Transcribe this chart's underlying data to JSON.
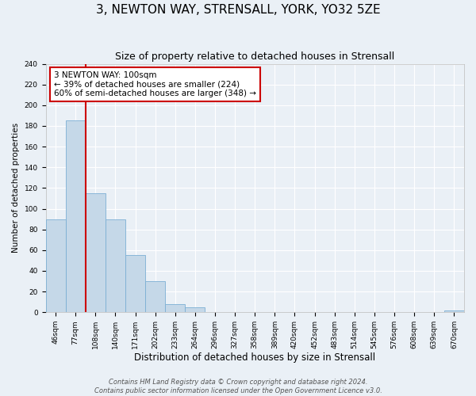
{
  "title": "3, NEWTON WAY, STRENSALL, YORK, YO32 5ZE",
  "subtitle": "Size of property relative to detached houses in Strensall",
  "xlabel": "Distribution of detached houses by size in Strensall",
  "ylabel": "Number of detached properties",
  "bins": [
    "46sqm",
    "77sqm",
    "108sqm",
    "140sqm",
    "171sqm",
    "202sqm",
    "233sqm",
    "264sqm",
    "296sqm",
    "327sqm",
    "358sqm",
    "389sqm",
    "420sqm",
    "452sqm",
    "483sqm",
    "514sqm",
    "545sqm",
    "576sqm",
    "608sqm",
    "639sqm",
    "670sqm"
  ],
  "values": [
    90,
    185,
    115,
    90,
    55,
    30,
    8,
    5,
    0,
    0,
    0,
    0,
    0,
    0,
    0,
    0,
    0,
    0,
    0,
    0,
    2
  ],
  "bar_color": "#c5d8e8",
  "bar_edge_color": "#7bafd4",
  "vline_color": "#cc0000",
  "annotation_text": "3 NEWTON WAY: 100sqm\n← 39% of detached houses are smaller (224)\n60% of semi-detached houses are larger (348) →",
  "annotation_box_color": "#ffffff",
  "annotation_box_edgecolor": "#cc0000",
  "ylim": [
    0,
    240
  ],
  "yticks": [
    0,
    20,
    40,
    60,
    80,
    100,
    120,
    140,
    160,
    180,
    200,
    220,
    240
  ],
  "background_color": "#eaf0f6",
  "grid_color": "#ffffff",
  "footer_line1": "Contains HM Land Registry data © Crown copyright and database right 2024.",
  "footer_line2": "Contains public sector information licensed under the Open Government Licence v3.0.",
  "title_fontsize": 11,
  "subtitle_fontsize": 9,
  "xlabel_fontsize": 8.5,
  "ylabel_fontsize": 7.5,
  "tick_fontsize": 6.5,
  "annotation_fontsize": 7.5,
  "footer_fontsize": 6
}
